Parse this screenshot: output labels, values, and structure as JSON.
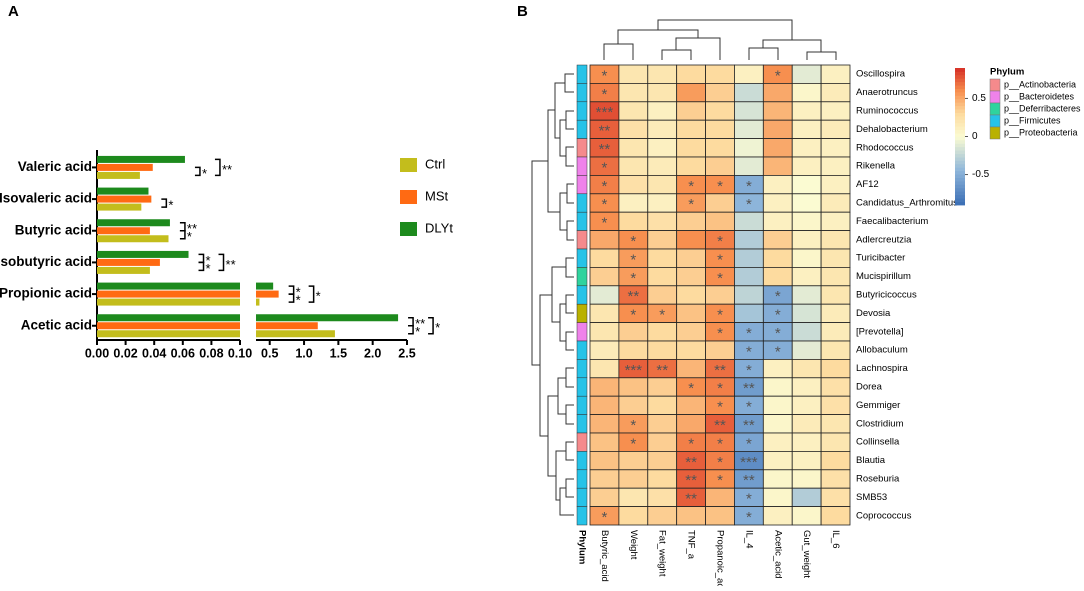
{
  "chart_data": [
    {
      "type": "bar",
      "orientation": "horizontal",
      "panel": "A",
      "categories": [
        "Valeric acid",
        "Isovaleric acid",
        "Butyric acid",
        "Isobutyric acid",
        "Propionic acid",
        "Acetic acid"
      ],
      "series": [
        {
          "name": "Ctrl",
          "color": "#c3bd1c",
          "values": [
            0.03,
            0.031,
            0.05,
            0.037,
            0.35,
            1.45
          ]
        },
        {
          "name": "MSt",
          "color": "#ff6a13",
          "values": [
            0.039,
            0.038,
            0.037,
            0.044,
            0.63,
            1.2
          ]
        },
        {
          "name": "DLYt",
          "color": "#1d8a1d",
          "values": [
            0.0615,
            0.036,
            0.051,
            0.064,
            0.55,
            2.37
          ]
        }
      ],
      "significance": [
        [
          null,
          "*",
          "**"
        ],
        [
          null,
          "*",
          null
        ],
        [
          "**",
          "*",
          null
        ],
        [
          "*",
          "*",
          "**"
        ],
        [
          "*",
          "*",
          "*"
        ],
        [
          "**",
          "*",
          "*"
        ]
      ],
      "xlim_segments": [
        [
          0,
          0.1
        ],
        [
          0.3,
          2.5
        ]
      ],
      "xticks": [
        {
          "value": 0,
          "label": "0.00"
        },
        {
          "value": 0.02,
          "label": "0.02"
        },
        {
          "value": 0.04,
          "label": "0.04"
        },
        {
          "value": 0.06,
          "label": "0.06"
        },
        {
          "value": 0.08,
          "label": "0.08"
        },
        {
          "value": 0.1,
          "label": "0.10"
        },
        0.5,
        {
          "value": 1,
          "label": "1.0"
        },
        1.5,
        {
          "value": 2,
          "label": "2.0"
        },
        2.5
      ]
    },
    {
      "type": "heatmap",
      "panel": "B",
      "x": [
        "Butyric_acid",
        "Weight",
        "Fat_weight",
        "TNF_a",
        "Propanoic_acid",
        "IL_4",
        "Acetic_acid",
        "Gut_weight",
        "IL_6"
      ],
      "y": [
        "Oscillospira",
        "Anaerotruncus",
        "Ruminococcus",
        "Dehalobacterium",
        "Rhodococcus",
        "Rikenella",
        "AF12",
        "Candidatus_Arthromitus",
        "Faecalibacterium",
        "Adlercreutzia",
        "Turicibacter",
        "Mucispirillum",
        "Butyricicoccus",
        "Devosia",
        "[Prevotella]",
        "Allobaculum",
        "Lachnospira",
        "Dorea",
        "Gemmiger",
        "Clostridium",
        "Collinsella",
        "Blautia",
        "Roseburia",
        "SMB53",
        "Coprococcus"
      ],
      "values": [
        [
          0.6,
          0.2,
          0.2,
          0.3,
          0.3,
          0.1,
          0.6,
          -0.1,
          0.1
        ],
        [
          0.65,
          0.2,
          0.2,
          0.55,
          0.35,
          -0.2,
          0.5,
          0.05,
          0.15
        ],
        [
          0.8,
          0.2,
          0.1,
          0.35,
          0.3,
          -0.15,
          0.45,
          0.1,
          0.1
        ],
        [
          0.75,
          0.25,
          0.15,
          0.3,
          0.3,
          -0.1,
          0.5,
          0.1,
          0.15
        ],
        [
          0.75,
          0.2,
          0.1,
          0.3,
          0.3,
          -0.05,
          0.5,
          0.1,
          0.1
        ],
        [
          0.7,
          0.2,
          0.15,
          0.3,
          0.35,
          -0.1,
          0.45,
          0.1,
          0.1
        ],
        [
          0.65,
          0.25,
          0.2,
          0.6,
          0.6,
          -0.5,
          0.1,
          0,
          0.1
        ],
        [
          0.6,
          0.1,
          0.1,
          0.55,
          0.35,
          -0.45,
          0.1,
          0,
          0.15
        ],
        [
          0.6,
          0.3,
          0.25,
          0.35,
          0.4,
          -0.2,
          0.1,
          0.05,
          0.1
        ],
        [
          0.5,
          0.6,
          0.35,
          0.6,
          0.65,
          -0.3,
          0.35,
          0.1,
          0.2
        ],
        [
          0.3,
          0.55,
          0.3,
          0.35,
          0.6,
          -0.3,
          0.3,
          0.05,
          0.2
        ],
        [
          0.35,
          0.55,
          0.3,
          0.35,
          0.6,
          -0.3,
          0.3,
          0.1,
          0.2
        ],
        [
          -0.1,
          0.7,
          0.35,
          0.3,
          0.35,
          -0.25,
          -0.55,
          -0.1,
          0.2
        ],
        [
          0.2,
          0.6,
          0.55,
          0.4,
          0.6,
          -0.35,
          -0.5,
          -0.15,
          0.15
        ],
        [
          0.2,
          0.35,
          0.3,
          0.35,
          0.6,
          -0.5,
          -0.5,
          -0.2,
          0.15
        ],
        [
          0.15,
          0.3,
          0.3,
          0.3,
          0.35,
          -0.5,
          -0.5,
          -0.1,
          0.2
        ],
        [
          0.2,
          0.75,
          0.7,
          0.45,
          0.7,
          -0.5,
          0.1,
          0.2,
          0.3
        ],
        [
          0.45,
          0.4,
          0.35,
          0.6,
          0.65,
          -0.6,
          0.05,
          0.1,
          0.25
        ],
        [
          0.45,
          0.35,
          0.3,
          0.45,
          0.6,
          -0.5,
          0.05,
          0.1,
          0.25
        ],
        [
          0.45,
          0.55,
          0.35,
          0.5,
          0.75,
          -0.6,
          0.05,
          0.15,
          0.2
        ],
        [
          0.4,
          0.6,
          0.35,
          0.65,
          0.65,
          -0.55,
          0.1,
          0.1,
          0.2
        ],
        [
          0.4,
          0.35,
          0.35,
          0.75,
          0.65,
          -0.7,
          0.1,
          0.1,
          0.3
        ],
        [
          0.35,
          0.35,
          0.3,
          0.75,
          0.6,
          -0.6,
          0.05,
          0.05,
          0.25
        ],
        [
          0.35,
          0.2,
          0.25,
          0.75,
          0.45,
          -0.5,
          0.05,
          -0.3,
          0.25
        ],
        [
          0.55,
          0.3,
          0.35,
          0.4,
          0.4,
          -0.5,
          0.1,
          0.05,
          0.3
        ]
      ],
      "significance": [
        [
          "*",
          null,
          null,
          null,
          null,
          null,
          "*",
          null,
          null
        ],
        [
          "*",
          null,
          null,
          null,
          null,
          null,
          null,
          null,
          null
        ],
        [
          "***",
          null,
          null,
          null,
          null,
          null,
          null,
          null,
          null
        ],
        [
          "**",
          null,
          null,
          null,
          null,
          null,
          null,
          null,
          null
        ],
        [
          "**",
          null,
          null,
          null,
          null,
          null,
          null,
          null,
          null
        ],
        [
          "*",
          null,
          null,
          null,
          null,
          null,
          null,
          null,
          null
        ],
        [
          "*",
          null,
          null,
          "*",
          "*",
          "*",
          null,
          null,
          null
        ],
        [
          "*",
          null,
          null,
          "*",
          null,
          "*",
          null,
          null,
          null
        ],
        [
          "*",
          null,
          null,
          null,
          null,
          null,
          null,
          null,
          null
        ],
        [
          null,
          "*",
          null,
          null,
          "*",
          null,
          null,
          null,
          null
        ],
        [
          null,
          "*",
          null,
          null,
          "*",
          null,
          null,
          null,
          null
        ],
        [
          null,
          "*",
          null,
          null,
          "*",
          null,
          null,
          null,
          null
        ],
        [
          null,
          "**",
          null,
          null,
          null,
          null,
          "*",
          null,
          null
        ],
        [
          null,
          "*",
          "*",
          null,
          "*",
          null,
          "*",
          null,
          null
        ],
        [
          null,
          null,
          null,
          null,
          "*",
          "*",
          "*",
          null,
          null
        ],
        [
          null,
          null,
          null,
          null,
          null,
          "*",
          "*",
          null,
          null
        ],
        [
          null,
          "***",
          "**",
          null,
          "**",
          "*",
          null,
          null,
          null
        ],
        [
          null,
          null,
          null,
          "*",
          "*",
          "**",
          null,
          null,
          null
        ],
        [
          null,
          null,
          null,
          null,
          "*",
          "*",
          null,
          null,
          null
        ],
        [
          null,
          "*",
          null,
          null,
          "**",
          "**",
          null,
          null,
          null
        ],
        [
          null,
          "*",
          null,
          "*",
          "*",
          "*",
          null,
          null,
          null
        ],
        [
          null,
          null,
          null,
          "**",
          "*",
          "***",
          null,
          null,
          null
        ],
        [
          null,
          null,
          null,
          "**",
          "*",
          "**",
          null,
          null,
          null
        ],
        [
          null,
          null,
          null,
          "**",
          null,
          "*",
          null,
          null,
          null
        ],
        [
          "*",
          null,
          null,
          null,
          null,
          "*",
          null,
          null,
          null
        ]
      ],
      "row_group_title": "Phylum",
      "groups": [
        {
          "name": "p__Actinobacteria",
          "color": "#f58a8c"
        },
        {
          "name": "p__Bacteroidetes",
          "color": "#ef82ea"
        },
        {
          "name": "p__Deferribacteres",
          "color": "#2fd39e"
        },
        {
          "name": "p__Firmicutes",
          "color": "#26c3e8"
        },
        {
          "name": "p__Proteobacteria",
          "color": "#b9b100"
        }
      ],
      "row_groups": [
        3,
        3,
        3,
        3,
        0,
        1,
        1,
        3,
        3,
        0,
        3,
        2,
        3,
        4,
        1,
        3,
        3,
        3,
        3,
        3,
        0,
        3,
        3,
        3,
        3
      ],
      "color_stops": [
        [
          -0.9,
          "#3a6db4"
        ],
        [
          -0.45,
          "#8db5da"
        ],
        [
          0,
          "#fbfbd2"
        ],
        [
          0.3,
          "#fddb9f"
        ],
        [
          0.6,
          "#f78f4f"
        ],
        [
          0.9,
          "#d62f27"
        ]
      ],
      "clim": [
        -0.9,
        0.9
      ],
      "cticks": [
        -0.5,
        0,
        0.5
      ]
    }
  ]
}
